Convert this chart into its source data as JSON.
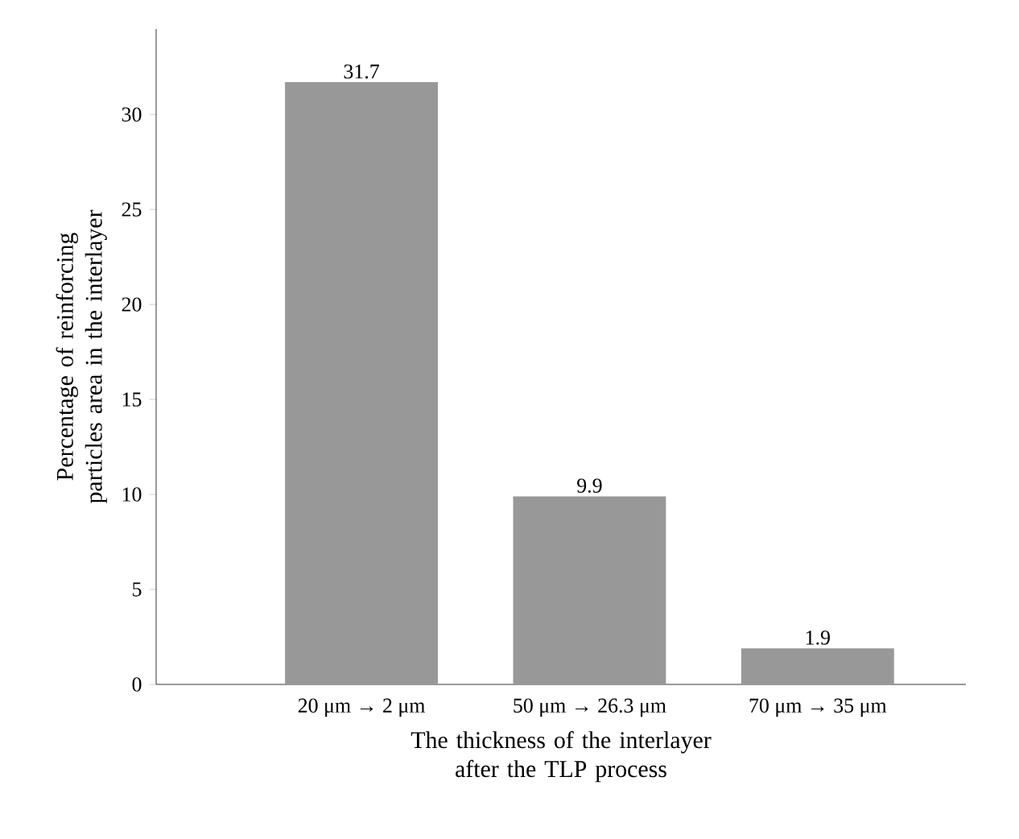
{
  "chart_data": {
    "type": "bar",
    "xlabel": "The thickness of the interlayer after the TLP process",
    "ylabel": "Percentage of reinforcing particles area in the interlayer",
    "categories": [
      "20 μm → 2 μm",
      "50 μm → 26.3 μm",
      "70 μm → 35 μm"
    ],
    "values": [
      31.7,
      9.9,
      1.9
    ],
    "color": "#989898",
    "data_labels": true,
    "ylim": [
      0,
      34.5
    ],
    "yticks": [
      0,
      5,
      10,
      15,
      20,
      25,
      30
    ],
    "grid": false
  }
}
